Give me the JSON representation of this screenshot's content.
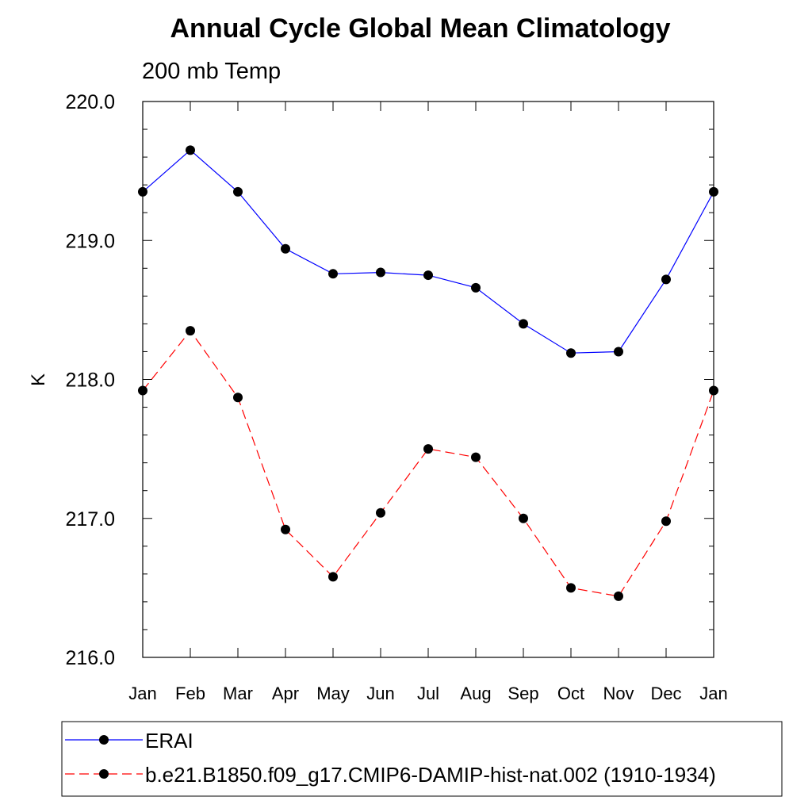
{
  "chart_data": {
    "type": "line",
    "title": "Annual Cycle Global Mean Climatology",
    "subtitle": "200 mb Temp",
    "ylabel": "K",
    "xlabel": "",
    "categories": [
      "Jan",
      "Feb",
      "Mar",
      "Apr",
      "May",
      "Jun",
      "Jul",
      "Aug",
      "Sep",
      "Oct",
      "Nov",
      "Dec",
      "Jan"
    ],
    "ylim": [
      216.0,
      220.0
    ],
    "yticks": [
      "216.0",
      "217.0",
      "218.0",
      "219.0",
      "220.0"
    ],
    "grid": false,
    "legend_position": "bottom",
    "series": [
      {
        "name": "ERAI",
        "color": "#0000ff",
        "dash": "solid",
        "marker": "circle",
        "values": [
          219.35,
          219.65,
          219.35,
          218.94,
          218.76,
          218.77,
          218.75,
          218.66,
          218.4,
          218.19,
          218.2,
          218.72,
          219.35
        ]
      },
      {
        "name": "b.e21.B1850.f09_g17.CMIP6-DAMIP-hist-nat.002 (1910-1934)",
        "color": "#ff0000",
        "dash": "dashed",
        "marker": "circle",
        "values": [
          217.92,
          218.35,
          217.87,
          216.92,
          216.58,
          217.04,
          217.5,
          217.44,
          217.0,
          216.5,
          216.44,
          216.98,
          217.92
        ]
      }
    ]
  }
}
